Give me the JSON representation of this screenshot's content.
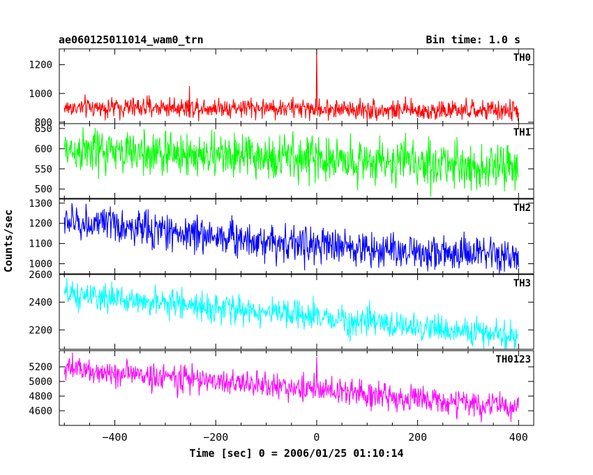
{
  "chart_data": {
    "type": "line",
    "title_left": "ae060125011014_wam0_trn",
    "title_right": "Bin time: 1.0 s",
    "xlabel": "Time [sec] 0 = 2006/01/25 01:10:14",
    "ylabel": "Counts/sec",
    "xlim": [
      -510,
      430
    ],
    "x_ticks": [
      -400,
      -200,
      0,
      200,
      400
    ],
    "series": [
      {
        "name": "TH0",
        "color": "#ff0000",
        "ylim": [
          790,
          1310
        ],
        "y_ticks": [
          800,
          1000,
          1200
        ],
        "trend": {
          "x": [
            -500,
            -250,
            0,
            200,
            400
          ],
          "y": [
            900,
            905,
            895,
            880,
            880
          ]
        },
        "noise_amplitude": 35,
        "spikes": [
          {
            "x": 0,
            "y": 1310
          },
          {
            "x": -252,
            "y": 1050
          }
        ]
      },
      {
        "name": "TH1",
        "color": "#00ff00",
        "ylim": [
          477,
          662
        ],
        "y_ticks": [
          500,
          550,
          600,
          650
        ],
        "trend": {
          "x": [
            -500,
            -250,
            0,
            200,
            400
          ],
          "y": [
            595,
            585,
            575,
            565,
            550
          ]
        },
        "noise_amplitude": 28,
        "spikes": []
      },
      {
        "name": "TH2",
        "color": "#0000ff",
        "ylim": [
          950,
          1320
        ],
        "y_ticks": [
          1000,
          1100,
          1200,
          1300
        ],
        "trend": {
          "x": [
            -500,
            -250,
            0,
            200,
            400
          ],
          "y": [
            1210,
            1150,
            1090,
            1060,
            1030
          ]
        },
        "noise_amplitude": 45,
        "spikes": []
      },
      {
        "name": "TH3",
        "color": "#00ffff",
        "ylim": [
          2060,
          2600
        ],
        "y_ticks": [
          2200,
          2400,
          2600
        ],
        "trend": {
          "x": [
            -500,
            -250,
            0,
            200,
            400
          ],
          "y": [
            2450,
            2380,
            2290,
            2220,
            2150
          ]
        },
        "noise_amplitude": 50,
        "spikes": []
      },
      {
        "name": "TH0123",
        "color": "#ff00ff",
        "ylim": [
          4400,
          5420
        ],
        "y_ticks": [
          4600,
          4800,
          5000,
          5200
        ],
        "trend": {
          "x": [
            -500,
            -250,
            0,
            200,
            400
          ],
          "y": [
            5170,
            5030,
            4890,
            4760,
            4640
          ]
        },
        "noise_amplitude": 90,
        "spikes": [
          {
            "x": 0,
            "y": 5330
          }
        ]
      }
    ]
  }
}
